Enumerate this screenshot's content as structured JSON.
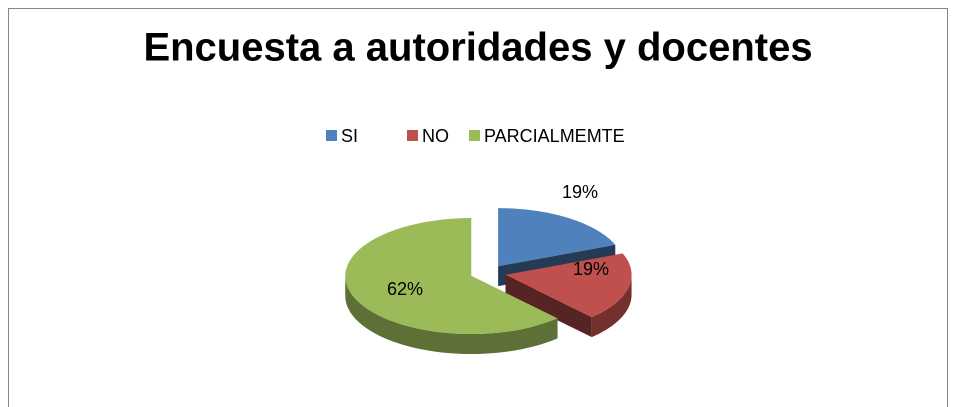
{
  "chart_data": {
    "type": "pie",
    "title": "Encuesta a autoridades y docentes",
    "categories": [
      "SI",
      "NO",
      "PARCIALMEMTE"
    ],
    "values": [
      19,
      19,
      62
    ],
    "value_labels": [
      "19%",
      "19%",
      "62%"
    ],
    "colors": [
      "#4f81bd",
      "#c0504d",
      "#9bbb59"
    ],
    "legend": "top"
  }
}
